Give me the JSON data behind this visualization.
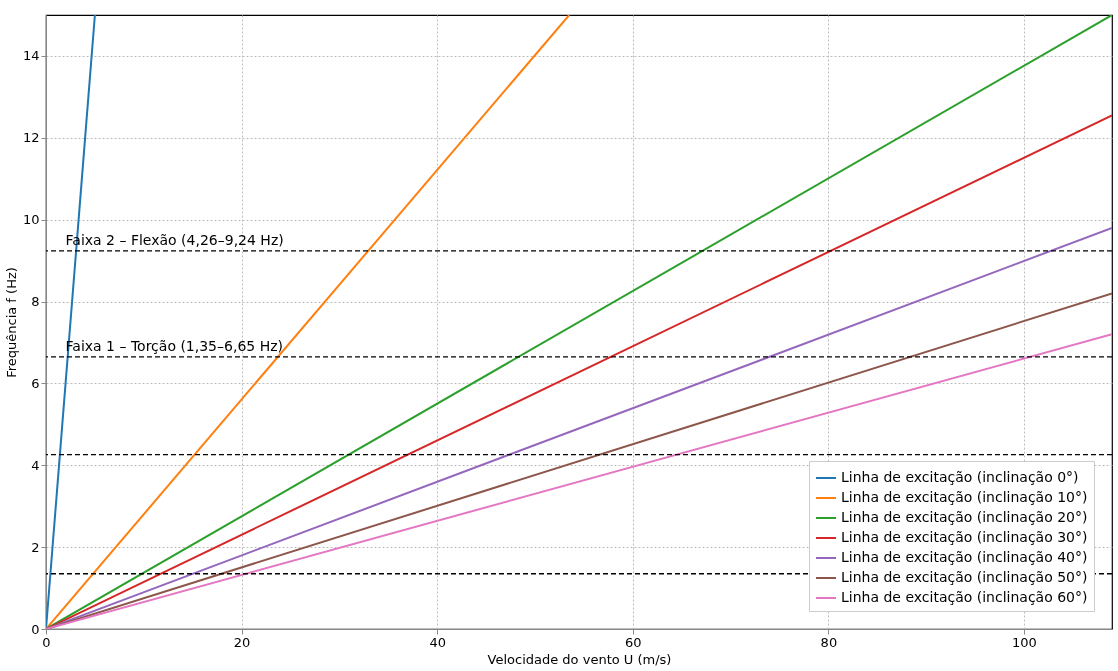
{
  "chart_data": {
    "type": "line",
    "xlabel": "Velocidade do vento U (m/s)",
    "ylabel": "Frequência f (Hz)",
    "xlim": [
      0,
      109
    ],
    "ylim": [
      0,
      15
    ],
    "xticks": [
      0,
      20,
      40,
      60,
      80,
      100
    ],
    "yticks": [
      0,
      2,
      4,
      6,
      8,
      10,
      12,
      14
    ],
    "grid": true,
    "legend": "bottom right",
    "line_style": "solid",
    "series": [
      {
        "name": "Linha de excitação (inclinação 0°)",
        "color": "#1f77b4",
        "x": [
          0,
          5
        ],
        "values": [
          0,
          15
        ]
      },
      {
        "name": "Linha de excitação (inclinação 10°)",
        "color": "#ff7f0e",
        "x": [
          0,
          53.5
        ],
        "values": [
          0,
          15
        ]
      },
      {
        "name": "Linha de excitação (inclinação 20°)",
        "color": "#2ca02c",
        "x": [
          0,
          109
        ],
        "values": [
          0,
          15
        ]
      },
      {
        "name": "Linha de excitação (inclinação 30°)",
        "color": "#d62728",
        "x": [
          0,
          109
        ],
        "values": [
          0,
          12.55
        ]
      },
      {
        "name": "Linha de excitação (inclinação 40°)",
        "color": "#9467bd",
        "x": [
          0,
          109
        ],
        "values": [
          0,
          9.8
        ]
      },
      {
        "name": "Linha de excitação (inclinação 50°)",
        "color": "#8c564b",
        "x": [
          0,
          109
        ],
        "values": [
          0,
          8.2
        ]
      },
      {
        "name": "Linha de excitação (inclinação 60°)",
        "color": "#e377c2",
        "x": [
          0,
          109
        ],
        "values": [
          0,
          7.2
        ]
      }
    ],
    "ref_lines": [
      {
        "axis": "y",
        "value": 9.24,
        "color": "#000000",
        "line_style": "dashed"
      },
      {
        "axis": "y",
        "value": 6.65,
        "color": "#000000",
        "line_style": "dashed"
      },
      {
        "axis": "y",
        "value": 4.26,
        "color": "#000000",
        "line_style": "dashed"
      },
      {
        "axis": "y",
        "value": 1.35,
        "color": "#000000",
        "line_style": "dashed"
      }
    ],
    "annotations": [
      {
        "text": "Faixa 2 – Flexão (4,26–9,24 Hz)",
        "x": 2,
        "y": 9.24
      },
      {
        "text": "Faixa 1 – Torção (1,35–6,65 Hz)",
        "x": 2,
        "y": 6.65
      }
    ]
  }
}
